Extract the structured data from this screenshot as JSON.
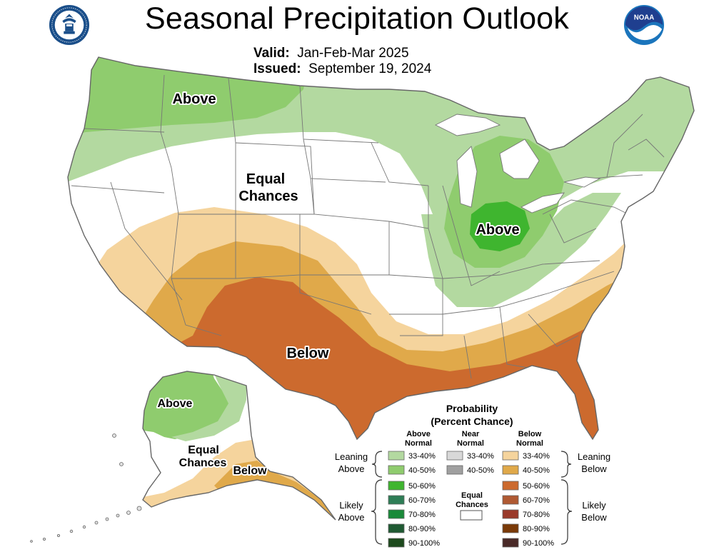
{
  "title": "Seasonal Precipitation Outlook",
  "valid": {
    "label": "Valid:",
    "value": "Jan-Feb-Mar 2025"
  },
  "issued": {
    "label": "Issued:",
    "value": "September 19, 2024"
  },
  "logos": {
    "left": "department-of-commerce-seal",
    "right": "noaa-logo"
  },
  "seal_text": "DEPARTMENT OF COMMERCE · UNITED STATES OF AMERICA",
  "noaa_text": "NOAA",
  "region_labels": {
    "conus_above_nw": "Above",
    "conus_equal_1": "Equal",
    "conus_equal_2": "Chances",
    "conus_above_ov": "Above",
    "conus_below": "Below",
    "ak_above": "Above",
    "ak_equal_1": "Equal",
    "ak_equal_2": "Chances",
    "ak_below": "Below"
  },
  "legend": {
    "title_1": "Probability",
    "title_2": "(Percent Chance)",
    "col_above_1": "Above",
    "col_above_2": "Normal",
    "col_near_1": "Near",
    "col_near_2": "Normal",
    "col_below_1": "Below",
    "col_below_2": "Normal",
    "leaning_above_1": "Leaning",
    "leaning_above_2": "Above",
    "leaning_below_1": "Leaning",
    "leaning_below_2": "Below",
    "likely_above_1": "Likely",
    "likely_above_2": "Above",
    "likely_below_1": "Likely",
    "likely_below_2": "Below",
    "equal_1": "Equal",
    "equal_2": "Chances",
    "above_bins": [
      "33-40%",
      "40-50%",
      "50-60%",
      "60-70%",
      "70-80%",
      "80-90%",
      "90-100%"
    ],
    "near_bins": [
      "33-40%",
      "40-50%"
    ],
    "below_bins": [
      "33-40%",
      "40-50%",
      "50-60%",
      "60-70%",
      "70-80%",
      "80-90%",
      "90-100%"
    ],
    "above_colors": [
      "#b3d9a0",
      "#8fcc6e",
      "#3fb52f",
      "#2e7d56",
      "#1a8a3a",
      "#1f5a33",
      "#1d4a1d"
    ],
    "near_colors": [
      "#d8d8d8",
      "#a0a0a0"
    ],
    "below_colors": [
      "#f5d49d",
      "#e0a94a",
      "#cc6a2e",
      "#b05a33",
      "#9a3a2a",
      "#7a3a08",
      "#4a2a28"
    ]
  },
  "colors": {
    "above_33_40": "#b3d9a0",
    "above_40_50": "#8fcc6e",
    "above_50_60": "#3fb52f",
    "below_33_40": "#f5d49d",
    "below_40_50": "#e0a94a",
    "below_50_60": "#cc6a2e",
    "equal_chances": "#ffffff",
    "boundary": "#777777",
    "noaa_blue": "#1b75bc"
  }
}
